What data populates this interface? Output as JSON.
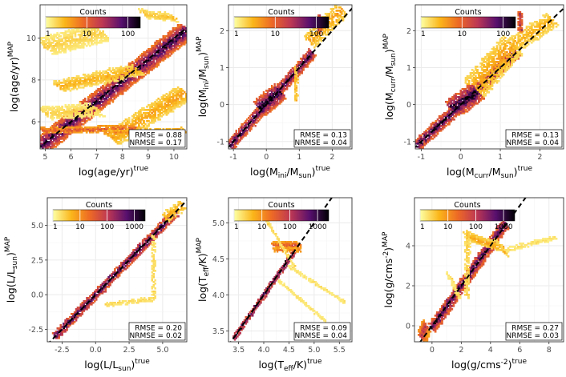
{
  "chart_data": [
    {
      "type": "heatmap",
      "id": "age",
      "xlabel": {
        "pre": "log(age/yr)",
        "sub": "",
        "mid": "",
        "sup": "true"
      },
      "ylabel": {
        "pre": "log(age/yr)",
        "sub": "",
        "mid": "",
        "sup": "MAP"
      },
      "xlim": [
        4.8,
        10.5
      ],
      "ylim": [
        4.7,
        11.6
      ],
      "xticks": [
        5,
        6,
        7,
        8,
        9,
        10
      ],
      "yticks": [
        6,
        8,
        10
      ],
      "xtick_labels": [
        "5",
        "6",
        "7",
        "8",
        "9",
        "10"
      ],
      "ytick_labels": [
        "6",
        "8",
        "10"
      ],
      "colorbar": {
        "title": "Counts",
        "ticks": [
          "1",
          "10",
          "100"
        ],
        "max_decade": 2.3
      },
      "stats": {
        "rmse": "RMSE = 0.88",
        "nrmse": "NRMSE = 0.17"
      },
      "identity_line": true,
      "structure": [
        {
          "kind": "band",
          "x0": 4.8,
          "y0": 4.8,
          "x1": 10.5,
          "y1": 10.4,
          "width": 0.35,
          "level": 2.0
        },
        {
          "kind": "band",
          "x0": 5.5,
          "y0": 7.7,
          "x1": 8.6,
          "y1": 8.5,
          "width": 0.3,
          "level": 0.5
        },
        {
          "kind": "band",
          "x0": 7.6,
          "y0": 5.2,
          "x1": 10.4,
          "y1": 7.4,
          "width": 0.4,
          "level": 0.6
        },
        {
          "kind": "band",
          "x0": 4.9,
          "y0": 5.6,
          "x1": 8.5,
          "y1": 5.7,
          "width": 0.12,
          "level": 1.1
        },
        {
          "kind": "band",
          "x0": 7.3,
          "y0": 5.5,
          "x1": 10.4,
          "y1": 5.6,
          "width": 0.12,
          "level": 0.8
        },
        {
          "kind": "band",
          "x0": 5.0,
          "y0": 9.6,
          "x1": 7.2,
          "y1": 10.3,
          "width": 0.5,
          "level": 0.3
        },
        {
          "kind": "band",
          "x0": 5.0,
          "y0": 6.4,
          "x1": 7.0,
          "y1": 6.6,
          "width": 0.4,
          "level": 0.3
        },
        {
          "kind": "band",
          "x0": 8.8,
          "y0": 11.2,
          "x1": 10.0,
          "y1": 11.0,
          "width": 0.25,
          "level": 0.4
        }
      ]
    },
    {
      "type": "heatmap",
      "id": "mini",
      "xlabel": {
        "pre": "log(M",
        "sub": "ini",
        "mid": "/M",
        "sub2": "sun",
        "post": ")",
        "sup": "true"
      },
      "ylabel": {
        "pre": "log(M",
        "sub": "ini",
        "mid": "/M",
        "sub2": "sun",
        "post": ")",
        "sup": "MAP"
      },
      "xlim": [
        -1.15,
        2.6
      ],
      "ylim": [
        -1.2,
        2.7
      ],
      "xticks": [
        -1,
        0,
        1,
        2
      ],
      "yticks": [
        -1,
        0,
        1,
        2
      ],
      "xtick_labels": [
        "-1",
        "0",
        "1",
        "2"
      ],
      "ytick_labels": [
        "-1",
        "0",
        "1",
        "2"
      ],
      "colorbar": {
        "title": "Counts",
        "ticks": [
          "1",
          "10",
          "100"
        ],
        "max_decade": 2.3
      },
      "stats": {
        "rmse": "RMSE = 0.13",
        "nrmse": "NRMSE = 0.04"
      },
      "identity_line": true,
      "structure": [
        {
          "kind": "band",
          "x0": -1.1,
          "y0": -1.1,
          "x1": 1.4,
          "y1": 1.4,
          "width": 0.12,
          "level": 2.0
        },
        {
          "kind": "band",
          "x0": 1.3,
          "y0": 1.7,
          "x1": 2.3,
          "y1": 2.6,
          "width": 0.2,
          "level": 0.6
        },
        {
          "kind": "band",
          "x0": 0.9,
          "y0": 0.1,
          "x1": 0.9,
          "y1": 1.0,
          "width": 0.05,
          "level": 0.5
        },
        {
          "kind": "band",
          "x0": 1.6,
          "y0": 2.0,
          "x1": 1.6,
          "y1": 2.4,
          "width": 0.06,
          "level": 1.5
        },
        {
          "kind": "band",
          "x0": -0.2,
          "y0": -0.1,
          "x1": 0.4,
          "y1": 0.35,
          "width": 0.25,
          "level": 2.2
        }
      ]
    },
    {
      "type": "heatmap",
      "id": "mcurr",
      "xlabel": {
        "pre": "log(M",
        "sub": "curr",
        "mid": "/M",
        "sub2": "sun",
        "post": ")",
        "sup": "true"
      },
      "ylabel": {
        "pre": "log(M",
        "sub": "curr",
        "mid": "/M",
        "sub2": "sun",
        "post": ")",
        "sup": "MAP"
      },
      "xlim": [
        -1.15,
        2.6
      ],
      "ylim": [
        -1.2,
        2.7
      ],
      "xticks": [
        -1,
        0,
        1,
        2
      ],
      "yticks": [
        -1,
        0,
        1,
        2
      ],
      "xtick_labels": [
        "-1",
        "0",
        "1",
        "2"
      ],
      "ytick_labels": [
        "-1",
        "0",
        "1",
        "2"
      ],
      "colorbar": {
        "title": "Counts",
        "ticks": [
          "1",
          "10",
          "100"
        ],
        "max_decade": 2.3
      },
      "stats": {
        "rmse": "RMSE = 0.13",
        "nrmse": "NRMSE = 0.04"
      },
      "identity_line": true,
      "structure": [
        {
          "kind": "band",
          "x0": -1.1,
          "y0": -1.1,
          "x1": 1.4,
          "y1": 1.4,
          "width": 0.12,
          "level": 2.0
        },
        {
          "kind": "band",
          "x0": 0.3,
          "y0": 0.4,
          "x1": 1.3,
          "y1": 1.6,
          "width": 0.35,
          "level": 0.6
        },
        {
          "kind": "band",
          "x0": 1.3,
          "y0": 1.6,
          "x1": 2.3,
          "y1": 2.3,
          "width": 0.2,
          "level": 0.5
        },
        {
          "kind": "band",
          "x0": 1.5,
          "y0": 2.0,
          "x1": 1.5,
          "y1": 2.5,
          "width": 0.06,
          "level": 1.5
        },
        {
          "kind": "band",
          "x0": -0.2,
          "y0": -0.1,
          "x1": 0.4,
          "y1": 0.35,
          "width": 0.25,
          "level": 2.2
        }
      ]
    },
    {
      "type": "heatmap",
      "id": "lum",
      "xlabel": {
        "pre": "log(L/L",
        "sub": "sun",
        "mid": "",
        "post": ")",
        "sup": "true"
      },
      "ylabel": {
        "pre": "log(L/L",
        "sub": "sun",
        "mid": "",
        "post": ")",
        "sup": "MAP"
      },
      "xlim": [
        -3.6,
        6.8
      ],
      "ylim": [
        -3.4,
        7.0
      ],
      "xticks": [
        -2.5,
        0.0,
        2.5,
        5.0
      ],
      "yticks": [
        -2.5,
        0.0,
        2.5,
        5.0
      ],
      "xtick_labels": [
        "-2.5",
        "0.0",
        "2.5",
        "5.0"
      ],
      "ytick_labels": [
        "-2.5",
        "0.0",
        "2.5",
        "5.0"
      ],
      "colorbar": {
        "title": "Counts",
        "ticks": [
          "1",
          "10",
          "100",
          "1000"
        ],
        "max_decade": 3.4
      },
      "stats": {
        "rmse": "RMSE = 0.20",
        "nrmse": "NRMSE = 0.02"
      },
      "identity_line": true,
      "structure": [
        {
          "kind": "band",
          "x0": -3.0,
          "y0": -3.0,
          "x1": 6.0,
          "y1": 6.0,
          "width": 0.18,
          "level": 3.0
        },
        {
          "kind": "band",
          "x0": 4.3,
          "y0": 4.3,
          "x1": 4.3,
          "y1": -0.3,
          "width": 0.12,
          "level": 0.4
        },
        {
          "kind": "band",
          "x0": 4.3,
          "y0": -0.3,
          "x1": 0.8,
          "y1": -0.7,
          "width": 0.15,
          "level": 0.4
        },
        {
          "kind": "band",
          "x0": 5.2,
          "y0": 5.6,
          "x1": 6.5,
          "y1": 6.5,
          "width": 0.3,
          "level": 0.8
        }
      ]
    },
    {
      "type": "heatmap",
      "id": "teff",
      "xlabel": {
        "pre": "log(T",
        "sub": "eff",
        "mid": "",
        "post": "/K)",
        "sup": "true"
      },
      "ylabel": {
        "pre": "log(T",
        "sub": "eff",
        "mid": "",
        "post": "/K)",
        "sup": "MAP"
      },
      "xlim": [
        3.3,
        5.75
      ],
      "ylim": [
        3.35,
        5.35
      ],
      "xticks": [
        3.5,
        4.0,
        4.5,
        5.0,
        5.5
      ],
      "yticks": [
        3.5,
        4.0,
        4.5,
        5.0
      ],
      "xtick_labels": [
        "3.5",
        "4.0",
        "4.5",
        "5.0",
        "5.5"
      ],
      "ytick_labels": [
        "3.5",
        "4.0",
        "4.5",
        "5.0"
      ],
      "colorbar": {
        "title": "Counts",
        "ticks": [
          "1",
          "10",
          "100",
          "1000"
        ],
        "max_decade": 3.4
      },
      "stats": {
        "rmse": "RMSE = 0.09",
        "nrmse": "NRMSE = 0.04"
      },
      "identity_line": true,
      "structure": [
        {
          "kind": "band",
          "x0": 3.4,
          "y0": 3.4,
          "x1": 4.6,
          "y1": 4.6,
          "width": 0.03,
          "level": 3.0
        },
        {
          "kind": "band",
          "x0": 4.2,
          "y0": 4.7,
          "x1": 4.7,
          "y1": 4.7,
          "width": 0.04,
          "level": 1.6
        },
        {
          "kind": "band",
          "x0": 4.2,
          "y0": 4.63,
          "x1": 4.7,
          "y1": 4.63,
          "width": 0.03,
          "level": 1.3
        },
        {
          "kind": "band",
          "x0": 4.0,
          "y0": 5.1,
          "x1": 4.6,
          "y1": 4.4,
          "width": 0.03,
          "level": 0.4
        },
        {
          "kind": "band",
          "x0": 4.5,
          "y0": 4.4,
          "x1": 5.6,
          "y1": 3.9,
          "width": 0.03,
          "level": 0.3
        },
        {
          "kind": "band",
          "x0": 4.3,
          "y0": 4.2,
          "x1": 5.2,
          "y1": 3.65,
          "width": 0.03,
          "level": 0.3
        }
      ]
    },
    {
      "type": "heatmap",
      "id": "logg",
      "xlabel": {
        "pre": "log(g/cms",
        "sub": "",
        "mid": "",
        "sup1": "-2",
        "post": ")",
        "sup": "true"
      },
      "ylabel": {
        "pre": "log(g/cms",
        "sub": "",
        "mid": "",
        "sup1": "-2",
        "post": ")",
        "sup": "MAP"
      },
      "xlim": [
        -1.2,
        9.0
      ],
      "ylim": [
        -0.8,
        6.4
      ],
      "xticks": [
        0,
        2,
        4,
        6,
        8
      ],
      "yticks": [
        0,
        2,
        4
      ],
      "xtick_labels": [
        "0",
        "2",
        "4",
        "6",
        "8"
      ],
      "ytick_labels": [
        "0",
        "2",
        "4"
      ],
      "colorbar": {
        "title": "Counts",
        "ticks": [
          "1",
          "10",
          "100",
          "1000"
        ],
        "max_decade": 3.4
      },
      "stats": {
        "rmse": "RMSE = 0.27",
        "nrmse": "NRMSE = 0.03"
      },
      "identity_line": true,
      "structure": [
        {
          "kind": "band",
          "x0": 0.0,
          "y0": -0.1,
          "x1": 5.0,
          "y1": 5.1,
          "width": 0.2,
          "level": 3.0
        },
        {
          "kind": "band",
          "x0": -0.7,
          "y0": -0.6,
          "x1": -0.4,
          "y1": 0.0,
          "width": 0.3,
          "level": 2.0
        },
        {
          "kind": "band",
          "x0": 2.4,
          "y0": 4.5,
          "x1": 4.4,
          "y1": 4.0,
          "width": 0.3,
          "level": 0.9
        },
        {
          "kind": "band",
          "x0": 2.4,
          "y0": 4.5,
          "x1": 2.4,
          "y1": 1.5,
          "width": 0.12,
          "level": 0.5
        },
        {
          "kind": "band",
          "x0": 4.4,
          "y0": 4.2,
          "x1": 5.0,
          "y1": 3.7,
          "width": 0.2,
          "level": 0.8
        },
        {
          "kind": "band",
          "x0": 5.0,
          "y0": 3.8,
          "x1": 8.4,
          "y1": 4.4,
          "width": 0.06,
          "level": 0.3
        },
        {
          "kind": "band",
          "x0": 1.2,
          "y0": 2.5,
          "x1": 1.8,
          "y1": 1.5,
          "width": 0.2,
          "level": 0.4
        }
      ]
    }
  ]
}
